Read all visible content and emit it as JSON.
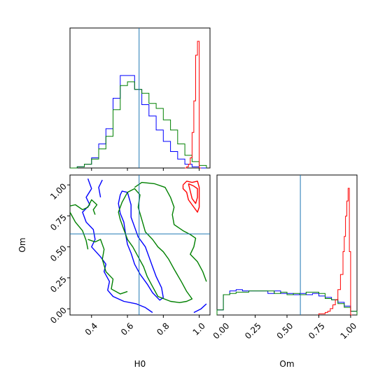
{
  "chart_data": {
    "type": "corner",
    "parameters": [
      "H0",
      "Om"
    ],
    "xlabel_h0": "H0",
    "xlabel_om": "Om",
    "ylabel_om": "Om",
    "truths": {
      "H0": 0.665,
      "Om": 0.605
    },
    "colors": {
      "blue": "#0000ff",
      "green": "#008000",
      "red": "#ff0000",
      "truth": "#1f77b4"
    },
    "h0_hist": {
      "xlim": [
        0.28,
        1.06
      ],
      "tick_values": [
        0.4,
        0.6,
        0.8,
        1.0
      ],
      "series": [
        {
          "color": "#0000ff",
          "edges": [
            0.28,
            0.32,
            0.36,
            0.4,
            0.44,
            0.48,
            0.52,
            0.56,
            0.6,
            0.64,
            0.68,
            0.72,
            0.76,
            0.8,
            0.84,
            0.88,
            0.92,
            0.96,
            1.0,
            1.04
          ],
          "counts": [
            0.0,
            0.01,
            0.03,
            0.08,
            0.19,
            0.31,
            0.55,
            0.73,
            0.73,
            0.62,
            0.5,
            0.41,
            0.3,
            0.21,
            0.13,
            0.07,
            0.03,
            0.01,
            0.0
          ]
        },
        {
          "color": "#008000",
          "edges": [
            0.28,
            0.32,
            0.36,
            0.4,
            0.44,
            0.48,
            0.52,
            0.56,
            0.6,
            0.64,
            0.68,
            0.72,
            0.76,
            0.8,
            0.84,
            0.88,
            0.92,
            0.96,
            1.0,
            1.04
          ],
          "counts": [
            0.0,
            0.01,
            0.03,
            0.07,
            0.15,
            0.25,
            0.46,
            0.65,
            0.68,
            0.62,
            0.59,
            0.51,
            0.47,
            0.38,
            0.3,
            0.19,
            0.1,
            0.05,
            0.02
          ]
        },
        {
          "color": "#ff0000",
          "edges": [
            0.92,
            0.93,
            0.94,
            0.95,
            0.96,
            0.97,
            0.98,
            0.99,
            1.0,
            1.01
          ],
          "counts": [
            0.0,
            0.01,
            0.03,
            0.08,
            0.28,
            0.53,
            0.89,
            1.0,
            0.0
          ]
        }
      ]
    },
    "om_hist": {
      "xlim": [
        -0.05,
        1.05
      ],
      "tick_values": [
        0.0,
        0.25,
        0.5,
        0.75,
        1.0
      ],
      "tick_labels": [
        "0.00",
        "0.25",
        "0.50",
        "0.75",
        "1.00"
      ],
      "series": [
        {
          "color": "#0000ff",
          "edges": [
            -0.05,
            0.0,
            0.05,
            0.1,
            0.15,
            0.2,
            0.25,
            0.3,
            0.35,
            0.4,
            0.45,
            0.5,
            0.55,
            0.6,
            0.65,
            0.7,
            0.75,
            0.8,
            0.85,
            0.9,
            0.95,
            1.0,
            1.05
          ],
          "counts": [
            0.04,
            0.16,
            0.19,
            0.2,
            0.19,
            0.19,
            0.19,
            0.19,
            0.17,
            0.19,
            0.17,
            0.17,
            0.16,
            0.17,
            0.16,
            0.17,
            0.15,
            0.14,
            0.12,
            0.1,
            0.07,
            0.03
          ]
        },
        {
          "color": "#008000",
          "edges": [
            -0.05,
            0.0,
            0.05,
            0.1,
            0.15,
            0.2,
            0.25,
            0.3,
            0.35,
            0.4,
            0.45,
            0.5,
            0.55,
            0.6,
            0.65,
            0.7,
            0.75,
            0.8,
            0.85,
            0.9,
            0.95,
            1.0,
            1.05
          ],
          "counts": [
            0.04,
            0.16,
            0.17,
            0.18,
            0.18,
            0.19,
            0.19,
            0.19,
            0.19,
            0.17,
            0.18,
            0.16,
            0.17,
            0.16,
            0.18,
            0.18,
            0.17,
            0.13,
            0.12,
            0.09,
            0.06,
            0.03
          ]
        },
        {
          "color": "#ff0000",
          "edges": [
            0.75,
            0.8,
            0.82,
            0.84,
            0.86,
            0.88,
            0.9,
            0.92,
            0.94,
            0.95,
            0.96,
            0.97,
            0.98,
            0.99,
            1.0,
            1.01
          ],
          "counts": [
            0.01,
            0.02,
            0.03,
            0.05,
            0.08,
            0.12,
            0.2,
            0.32,
            0.5,
            0.62,
            0.78,
            0.9,
            1.0,
            0.5,
            0.0
          ]
        }
      ]
    },
    "joint": {
      "xlim": [
        0.28,
        1.06
      ],
      "ylim": [
        -0.05,
        1.08
      ],
      "x_tick_values": [
        0.4,
        0.6,
        0.8,
        1.0
      ],
      "y_tick_values": [
        0.0,
        0.25,
        0.5,
        0.75,
        1.0
      ],
      "y_tick_labels": [
        "0.00",
        "0.25",
        "0.50",
        "0.75",
        "1.00"
      ],
      "contours": [
        {
          "color": "#0000ff",
          "points": [
            [
              0.38,
              1.05
            ],
            [
              0.4,
              0.97
            ],
            [
              0.37,
              0.9
            ],
            [
              0.39,
              0.84
            ],
            [
              0.35,
              0.78
            ],
            [
              0.37,
              0.7
            ],
            [
              0.41,
              0.64
            ],
            [
              0.42,
              0.56
            ],
            [
              0.4,
              0.5
            ],
            [
              0.45,
              0.42
            ],
            [
              0.48,
              0.36
            ],
            [
              0.47,
              0.3
            ],
            [
              0.5,
              0.22
            ],
            [
              0.49,
              0.15
            ],
            [
              0.52,
              0.1
            ],
            [
              0.58,
              0.06
            ],
            [
              0.65,
              0.04
            ],
            [
              0.7,
              0.01
            ],
            [
              0.74,
              -0.03
            ]
          ]
        },
        {
          "color": "#0000ff",
          "points": [
            [
              0.46,
              1.04
            ],
            [
              0.44,
              0.98
            ],
            [
              0.45,
              0.9
            ]
          ]
        },
        {
          "color": "#0000ff",
          "points": [
            [
              0.56,
              0.92
            ],
            [
              0.55,
              0.85
            ],
            [
              0.56,
              0.77
            ],
            [
              0.58,
              0.7
            ],
            [
              0.59,
              0.6
            ],
            [
              0.6,
              0.52
            ],
            [
              0.62,
              0.45
            ],
            [
              0.64,
              0.36
            ],
            [
              0.67,
              0.28
            ],
            [
              0.71,
              0.2
            ],
            [
              0.74,
              0.13
            ],
            [
              0.78,
              0.07
            ],
            [
              0.8,
              0.09
            ],
            [
              0.79,
              0.17
            ],
            [
              0.76,
              0.26
            ],
            [
              0.74,
              0.34
            ],
            [
              0.72,
              0.42
            ],
            [
              0.7,
              0.5
            ],
            [
              0.66,
              0.58
            ],
            [
              0.64,
              0.66
            ],
            [
              0.62,
              0.74
            ],
            [
              0.62,
              0.84
            ],
            [
              0.6,
              0.94
            ],
            [
              0.57,
              0.95
            ],
            [
              0.56,
              0.92
            ]
          ]
        },
        {
          "color": "#0000ff",
          "points": [
            [
              0.97,
              -0.03
            ],
            [
              1.01,
              0.0
            ],
            [
              1.04,
              0.04
            ]
          ]
        },
        {
          "color": "#008000",
          "points": [
            [
              0.28,
              0.83
            ],
            [
              0.31,
              0.84
            ],
            [
              0.35,
              0.8
            ],
            [
              0.38,
              0.82
            ],
            [
              0.4,
              0.88
            ],
            [
              0.43,
              0.84
            ],
            [
              0.41,
              0.8
            ],
            [
              0.42,
              0.76
            ]
          ]
        },
        {
          "color": "#008000",
          "points": [
            [
              0.28,
              0.78
            ],
            [
              0.31,
              0.7
            ],
            [
              0.35,
              0.63
            ],
            [
              0.37,
              0.55
            ],
            [
              0.38,
              0.48
            ]
          ]
        },
        {
          "color": "#008000",
          "points": [
            [
              0.38,
              0.56
            ],
            [
              0.42,
              0.54
            ],
            [
              0.45,
              0.56
            ],
            [
              0.47,
              0.48
            ],
            [
              0.46,
              0.4
            ],
            [
              0.48,
              0.3
            ],
            [
              0.52,
              0.24
            ],
            [
              0.51,
              0.16
            ],
            [
              0.56,
              0.12
            ],
            [
              0.6,
              0.14
            ]
          ]
        },
        {
          "color": "#008000",
          "points": [
            [
              0.57,
              0.86
            ],
            [
              0.55,
              0.78
            ],
            [
              0.56,
              0.72
            ],
            [
              0.58,
              0.64
            ],
            [
              0.6,
              0.56
            ],
            [
              0.63,
              0.5
            ],
            [
              0.66,
              0.42
            ],
            [
              0.69,
              0.34
            ],
            [
              0.71,
              0.26
            ],
            [
              0.74,
              0.18
            ],
            [
              0.77,
              0.1
            ],
            [
              0.84,
              0.06
            ],
            [
              0.89,
              0.05
            ],
            [
              0.93,
              0.06
            ],
            [
              0.96,
              0.08
            ],
            [
              0.93,
              0.14
            ],
            [
              0.9,
              0.22
            ],
            [
              0.86,
              0.32
            ],
            [
              0.83,
              0.4
            ],
            [
              0.8,
              0.46
            ],
            [
              0.77,
              0.5
            ],
            [
              0.74,
              0.56
            ],
            [
              0.7,
              0.62
            ],
            [
              0.68,
              0.72
            ],
            [
              0.66,
              0.82
            ],
            [
              0.67,
              0.92
            ],
            [
              0.64,
              0.97
            ],
            [
              0.6,
              0.94
            ],
            [
              0.57,
              0.86
            ]
          ]
        },
        {
          "color": "#008000",
          "points": [
            [
              0.64,
              0.98
            ],
            [
              0.68,
              1.02
            ],
            [
              0.75,
              1.01
            ],
            [
              0.81,
              0.98
            ],
            [
              0.84,
              0.9
            ],
            [
              0.86,
              0.82
            ],
            [
              0.85,
              0.76
            ],
            [
              0.86,
              0.68
            ],
            [
              0.91,
              0.63
            ],
            [
              0.95,
              0.6
            ],
            [
              0.98,
              0.57
            ],
            [
              0.97,
              0.5
            ],
            [
              0.95,
              0.44
            ],
            [
              0.99,
              0.38
            ],
            [
              1.02,
              0.3
            ],
            [
              1.04,
              0.22
            ]
          ]
        },
        {
          "color": "#ff0000",
          "points": [
            [
              0.91,
              1.0
            ],
            [
              0.93,
              1.03
            ],
            [
              0.96,
              1.02
            ],
            [
              0.99,
              1.03
            ],
            [
              1.0,
              0.98
            ],
            [
              1.0,
              0.9
            ],
            [
              1.0,
              0.82
            ],
            [
              0.99,
              0.78
            ],
            [
              0.97,
              0.82
            ],
            [
              0.94,
              0.88
            ],
            [
              0.93,
              0.94
            ],
            [
              0.91,
              0.97
            ],
            [
              0.91,
              1.0
            ]
          ]
        },
        {
          "color": "#ff0000",
          "points": [
            [
              0.94,
              1.01
            ],
            [
              0.97,
              0.99
            ],
            [
              0.99,
              0.97
            ],
            [
              0.99,
              0.9
            ],
            [
              0.98,
              0.85
            ],
            [
              0.96,
              0.89
            ],
            [
              0.95,
              0.95
            ],
            [
              0.94,
              1.01
            ]
          ]
        }
      ]
    }
  }
}
